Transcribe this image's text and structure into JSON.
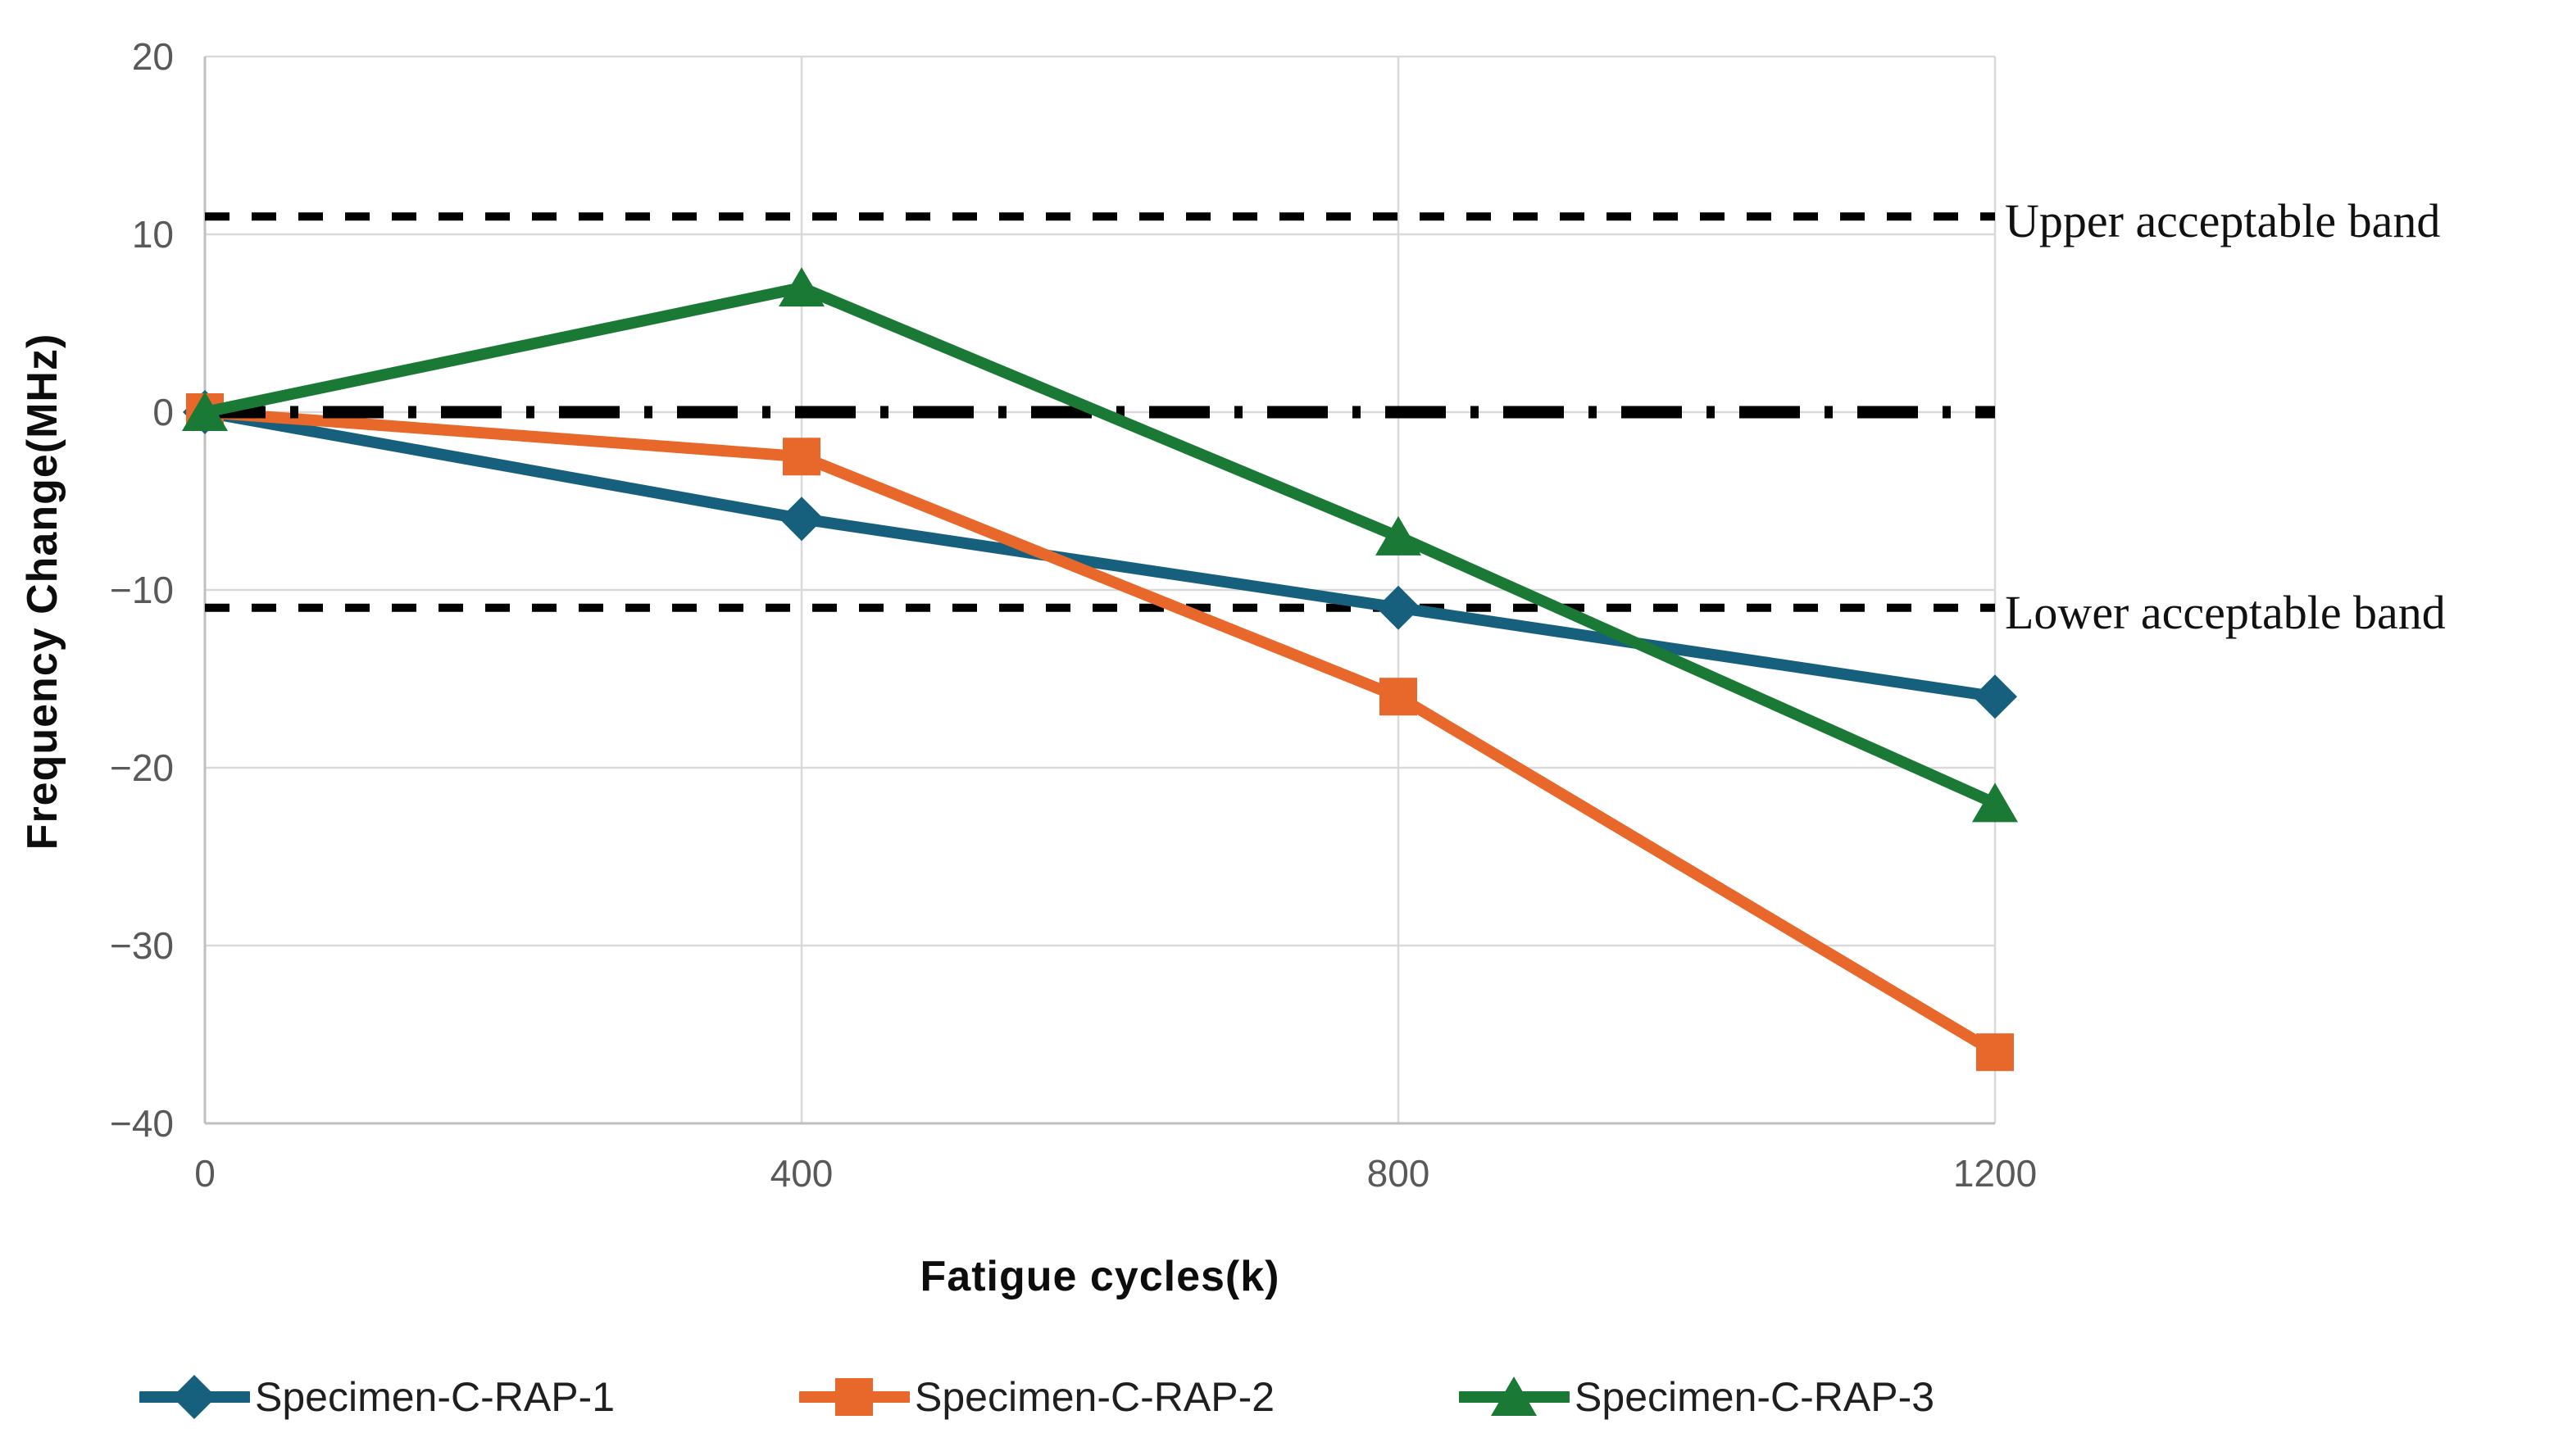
{
  "chart_data": {
    "type": "line",
    "title": "",
    "xlabel": "Fatigue cycles(k)",
    "ylabel": "Frequency Change(MHz)",
    "x": [
      0,
      400,
      800,
      1200
    ],
    "xlim": [
      0,
      1200
    ],
    "ylim": [
      -40,
      20
    ],
    "x_ticks": [
      "0",
      "400",
      "800",
      "1200"
    ],
    "y_ticks": [
      "20",
      "10",
      "0",
      "−10",
      "−20",
      "−30",
      "−40"
    ],
    "y_tick_values": [
      20,
      10,
      0,
      -10,
      -20,
      -30,
      -40
    ],
    "grid": true,
    "grid_color": "#D9D9D9",
    "axis_color": "#BFBFBF",
    "tick_label_color": "#595959",
    "legend_position": "bottom",
    "series": [
      {
        "name": "Specimen-C-RAP-1",
        "marker": "diamond",
        "color": "#17607D",
        "values": [
          0,
          -6,
          -11,
          -16
        ]
      },
      {
        "name": "Specimen-C-RAP-2",
        "marker": "square",
        "color": "#E8682C",
        "values": [
          0,
          -2.5,
          -16,
          -36
        ]
      },
      {
        "name": "Specimen-C-RAP-3",
        "marker": "triangle",
        "color": "#1A7A35",
        "values": [
          0,
          7,
          -7,
          -22
        ]
      }
    ],
    "reference_lines": [
      {
        "label": "Upper acceptable band",
        "value": 11,
        "style": "dashed",
        "color": "#000000"
      },
      {
        "label": "Lower acceptable band",
        "value": -11,
        "style": "dashed",
        "color": "#000000"
      },
      {
        "label": "",
        "value": 0,
        "style": "dash-dot",
        "color": "#000000"
      }
    ]
  }
}
